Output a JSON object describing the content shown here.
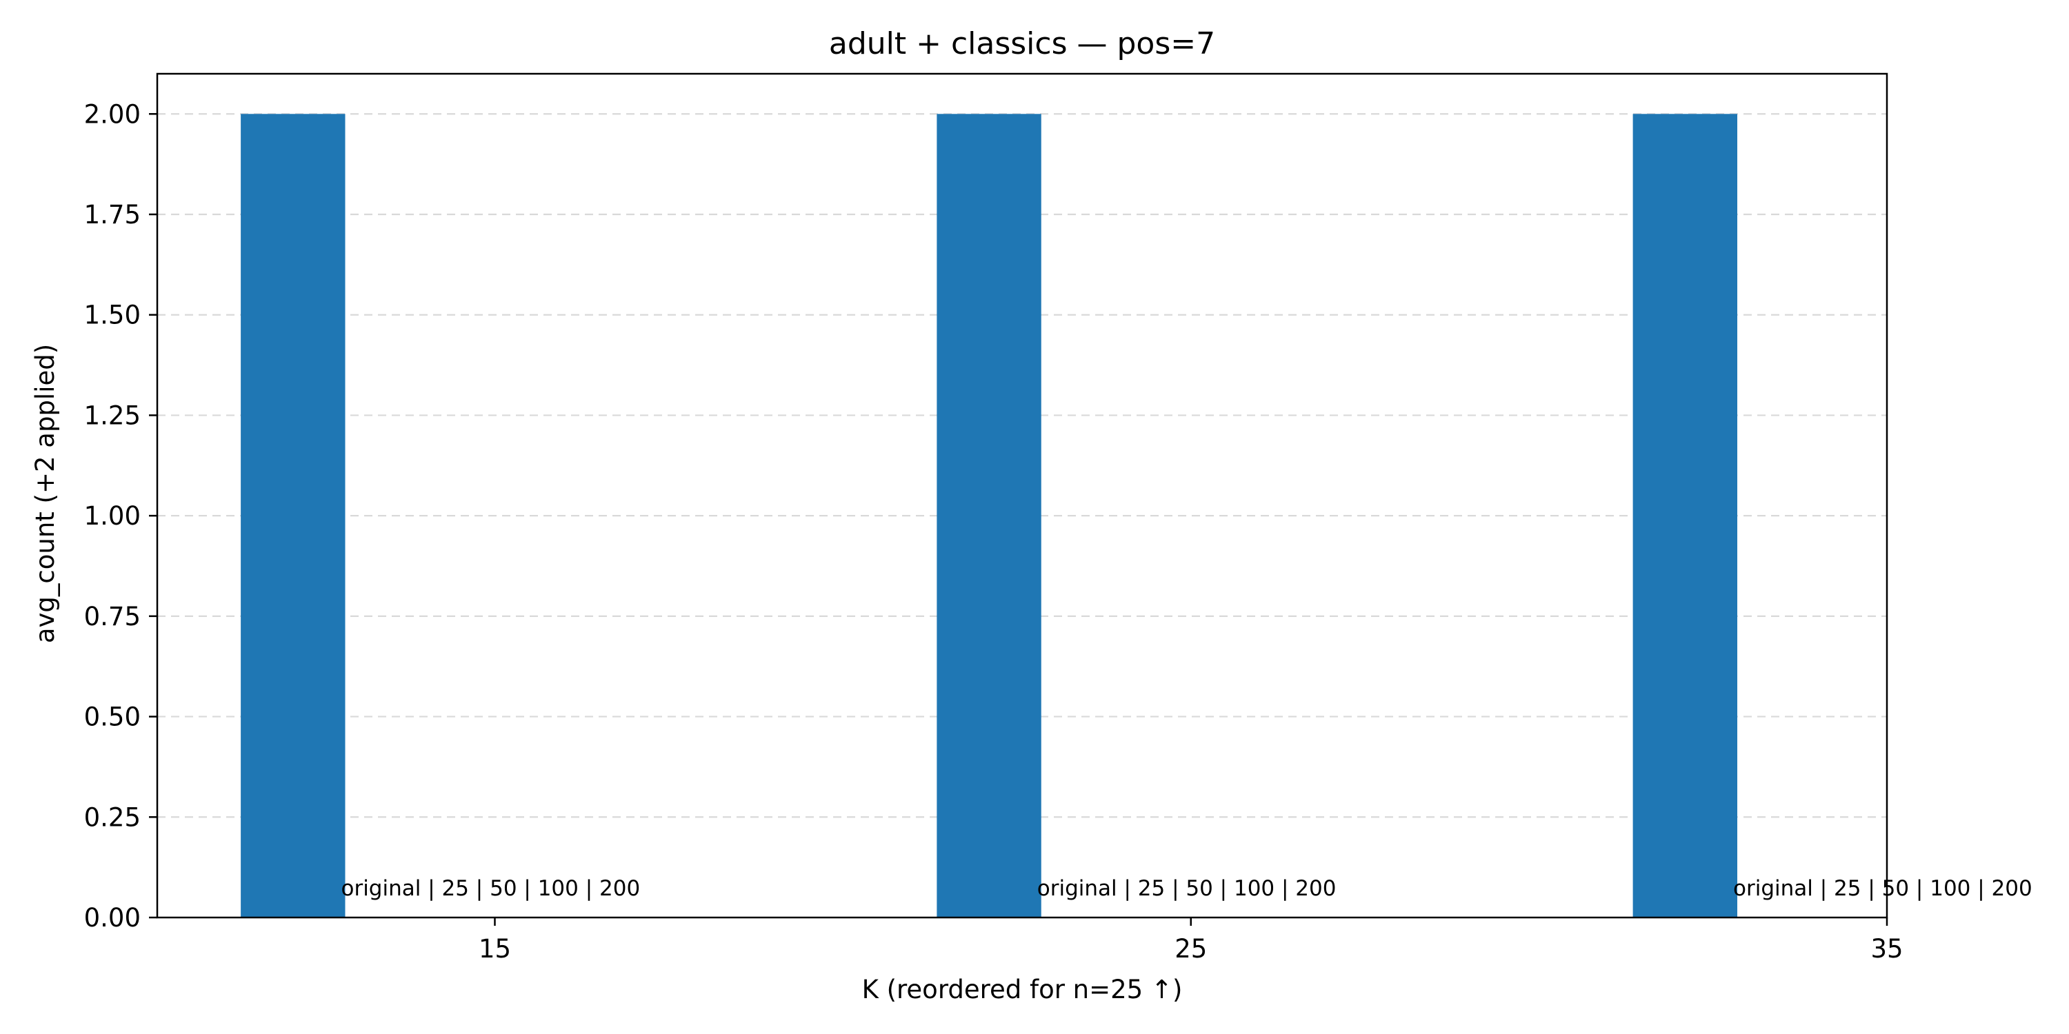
{
  "chart_data": {
    "type": "bar",
    "title": "adult + classics — pos=7",
    "xlabel": "K (reordered for n=25 ↑)",
    "ylabel": "avg_count (+2 applied)",
    "x_ticks": [
      "15",
      "25",
      "35"
    ],
    "xlim": [
      10.15,
      35
    ],
    "ylim": [
      0,
      2.1
    ],
    "y_ticks": [
      "0.00",
      "0.25",
      "0.50",
      "0.75",
      "1.00",
      "1.25",
      "1.50",
      "1.75",
      "2.00"
    ],
    "grid": "horizontal dashed",
    "colors": {
      "bar": "#1f77b4",
      "grid": "#d9d9d9"
    },
    "bars": [
      {
        "x": 12.1,
        "value": 2.0,
        "annotation": "original | 25 | 50 | 100 | 200"
      },
      {
        "x": 22.1,
        "value": 2.0,
        "annotation": "original | 25 | 50 | 100 | 200"
      },
      {
        "x": 32.1,
        "value": 2.0,
        "annotation": "original | 25 | 50 | 100 | 200"
      }
    ],
    "bar_width": 1.5
  }
}
